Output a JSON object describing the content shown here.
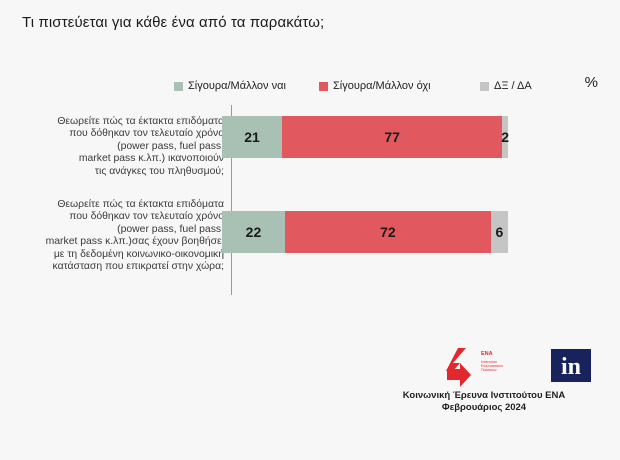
{
  "title": "Τι πιστεύεται για κάθε ένα από τα παρακάτω;",
  "unit": "%",
  "legend": [
    {
      "label": "Σίγουρα/Μάλλον ναι",
      "color": "#a9c1b4"
    },
    {
      "label": "Σίγουρα/Μάλλον όχι",
      "color": "#e2585f"
    },
    {
      "label": "ΔΞ / ΔΑ",
      "color": "#c5c5c5"
    }
  ],
  "chart_data": {
    "type": "bar",
    "orientation": "horizontal",
    "stacked": true,
    "categories": [
      "Θεωρείτε πώς τα έκτακτα επιδόματα που δόθηκαν τον τελευταίο χρόνο (power pass, fuel pass, market pass κ.λπ.) ικανοποιούν τις ανάγκες του πληθυσμού;",
      "Θεωρείτε πώς τα έκτακτα επιδόματα που δόθηκαν τον τελευταίο χρόνο (power pass, fuel pass, market pass κ.λπ.)σας έχουν βοηθήσει με τη δεδομένη κοινωνικο-οικονομική κατάσταση που επικρατεί στην χώρα;"
    ],
    "category_lines": [
      [
        "Θεωρείτε πώς τα έκτακτα επιδόματα",
        "που δόθηκαν τον τελευταίο χρόνο",
        "(power pass, fuel pass,",
        "market pass κ.λπ.) ικανοποιούν",
        "τις ανάγκες του πληθυσμού;"
      ],
      [
        "Θεωρείτε πώς τα έκτακτα επιδόματα",
        "που δόθηκαν τον τελευταίο χρόνο",
        "(power pass, fuel pass,",
        "market pass κ.λπ.)σας έχουν βοηθήσει",
        "με τη δεδομένη κοινωνικο-οικονομική",
        "κατάσταση που επικρατεί στην χώρα;"
      ]
    ],
    "series": [
      {
        "name": "Σίγουρα/Μάλλον ναι",
        "values": [
          21,
          22
        ],
        "color": "#a9c1b4"
      },
      {
        "name": "Σίγουρα/Μάλλον όχι",
        "values": [
          77,
          72
        ],
        "color": "#e2585f"
      },
      {
        "name": "ΔΞ / ΔΑ",
        "values": [
          2,
          6
        ],
        "color": "#c5c5c5"
      }
    ],
    "xlim": [
      0,
      100
    ],
    "data_labels": [
      [
        "21",
        "77",
        "2"
      ],
      [
        "22",
        "72",
        "6"
      ]
    ],
    "legend_position": "top",
    "grid": false
  },
  "footer": {
    "line1": "Κοινωνική Έρευνα Ινστιτούτου ΕΝΑ",
    "line2": "Φεβρουάριος 2024"
  },
  "logos": {
    "ena_name": "ΕΝΑ",
    "ena_subtitle_lines": [
      "Ινστιτούτο",
      "Εναλλακτικών",
      "Πολιτικών"
    ],
    "in_text": "in"
  }
}
